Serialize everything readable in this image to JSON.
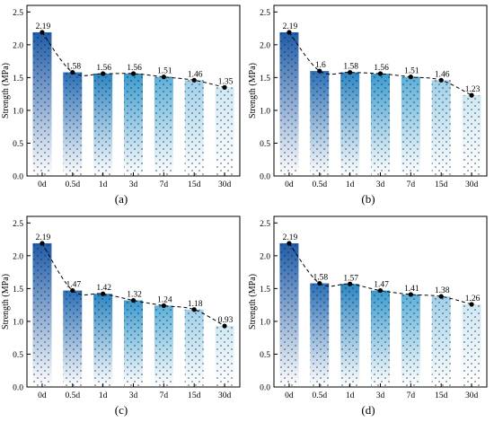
{
  "chart_data": [
    {
      "type": "bar",
      "panel_label": "(a)",
      "categories": [
        "0d",
        "0.5d",
        "1d",
        "3d",
        "7d",
        "15d",
        "30d"
      ],
      "values": [
        2.19,
        1.58,
        1.56,
        1.56,
        1.51,
        1.46,
        1.35
      ],
      "value_labels": [
        "2.19",
        "1.58",
        "1.56",
        "1.56",
        "1.51",
        "1.46",
        "1.35"
      ],
      "ylabel": "Strength (MPa)",
      "ylim": [
        0,
        2.6
      ],
      "yticks": [
        "0.0",
        "0.5",
        "1.0",
        "1.5",
        "2.0",
        "2.5"
      ],
      "trend": "dashed line with dot markers through bar tops"
    },
    {
      "type": "bar",
      "panel_label": "(b)",
      "categories": [
        "0d",
        "0.5d",
        "1d",
        "3d",
        "7d",
        "15d",
        "30d"
      ],
      "values": [
        2.19,
        1.6,
        1.58,
        1.56,
        1.51,
        1.46,
        1.23
      ],
      "value_labels": [
        "2.19",
        "1.6",
        "1.58",
        "1.56",
        "1.51",
        "1.46",
        "1.23"
      ],
      "ylabel": "Strength (MPa)",
      "ylim": [
        0,
        2.6
      ],
      "yticks": [
        "0.0",
        "0.5",
        "1.0",
        "1.5",
        "2.0",
        "2.5"
      ],
      "trend": "dashed line with dot markers through bar tops"
    },
    {
      "type": "bar",
      "panel_label": "(c)",
      "categories": [
        "0d",
        "0.5d",
        "1d",
        "3d",
        "7d",
        "15d",
        "30d"
      ],
      "values": [
        2.19,
        1.47,
        1.42,
        1.32,
        1.24,
        1.18,
        0.93
      ],
      "value_labels": [
        "2.19",
        "1.47",
        "1.42",
        "1.32",
        "1.24",
        "1.18",
        "0.93"
      ],
      "ylabel": "Strength (MPa)",
      "ylim": [
        0,
        2.6
      ],
      "yticks": [
        "0.0",
        "0.5",
        "1.0",
        "1.5",
        "2.0",
        "2.5"
      ],
      "trend": "dashed line with dot markers through bar tops"
    },
    {
      "type": "bar",
      "panel_label": "(d)",
      "categories": [
        "0d",
        "0.5d",
        "1d",
        "3d",
        "7d",
        "15d",
        "30d"
      ],
      "values": [
        2.19,
        1.58,
        1.57,
        1.47,
        1.41,
        1.38,
        1.26
      ],
      "value_labels": [
        "2.19",
        "1.58",
        "1.57",
        "1.47",
        "1.41",
        "1.38",
        "1.26"
      ],
      "ylabel": "Strength (MPa)",
      "ylim": [
        0,
        2.6
      ],
      "yticks": [
        "0.0",
        "0.5",
        "1.0",
        "1.5",
        "2.0",
        "2.5"
      ],
      "trend": "dashed line with dot markers through bar tops"
    }
  ],
  "colors": {
    "bar_top": [
      "#1f5ca9",
      "#2a70b8",
      "#2d86c4",
      "#3a9bd0",
      "#5cb0da",
      "#9fd0ea",
      "#cfe8f5"
    ],
    "bar_bottom": "#ffffff",
    "stipple": "#1a1a1a",
    "trend_line": "#000000",
    "axis": "#000000"
  }
}
